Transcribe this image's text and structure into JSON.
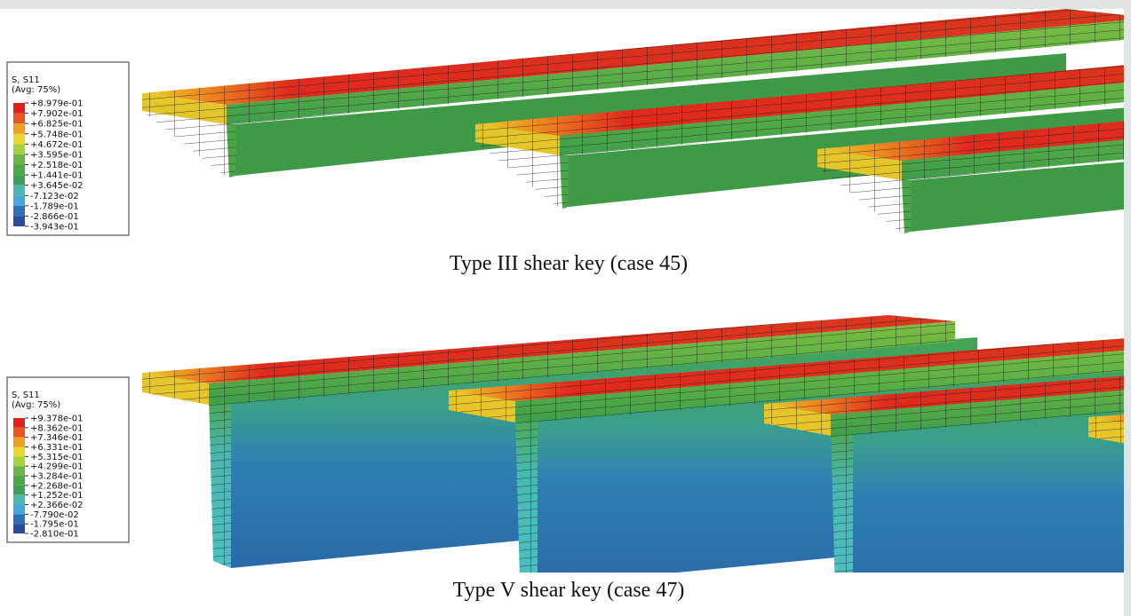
{
  "panels": [
    {
      "legend": {
        "title": "S, S11",
        "subtitle": "(Avg: 75%)",
        "labels": [
          "+8.979e-01",
          "+7.902e-01",
          "+6.825e-01",
          "+5.748e-01",
          "+4.672e-01",
          "+3.595e-01",
          "+2.518e-01",
          "+1.441e-01",
          "+3.645e-02",
          "-7.123e-02",
          "-1.789e-01",
          "-2.866e-01",
          "-3.943e-01"
        ]
      },
      "caption": "Type III shear key (case 45)"
    },
    {
      "legend": {
        "title": "S, S11",
        "subtitle": "(Avg: 75%)",
        "labels": [
          "+9.378e-01",
          "+8.362e-01",
          "+7.346e-01",
          "+6.331e-01",
          "+5.315e-01",
          "+4.299e-01",
          "+3.284e-01",
          "+2.268e-01",
          "+1.252e-01",
          "+2.366e-02",
          "-7.790e-02",
          "-1.795e-01",
          "-2.810e-01"
        ]
      },
      "caption": "Type V shear key  (case 47)"
    }
  ]
}
